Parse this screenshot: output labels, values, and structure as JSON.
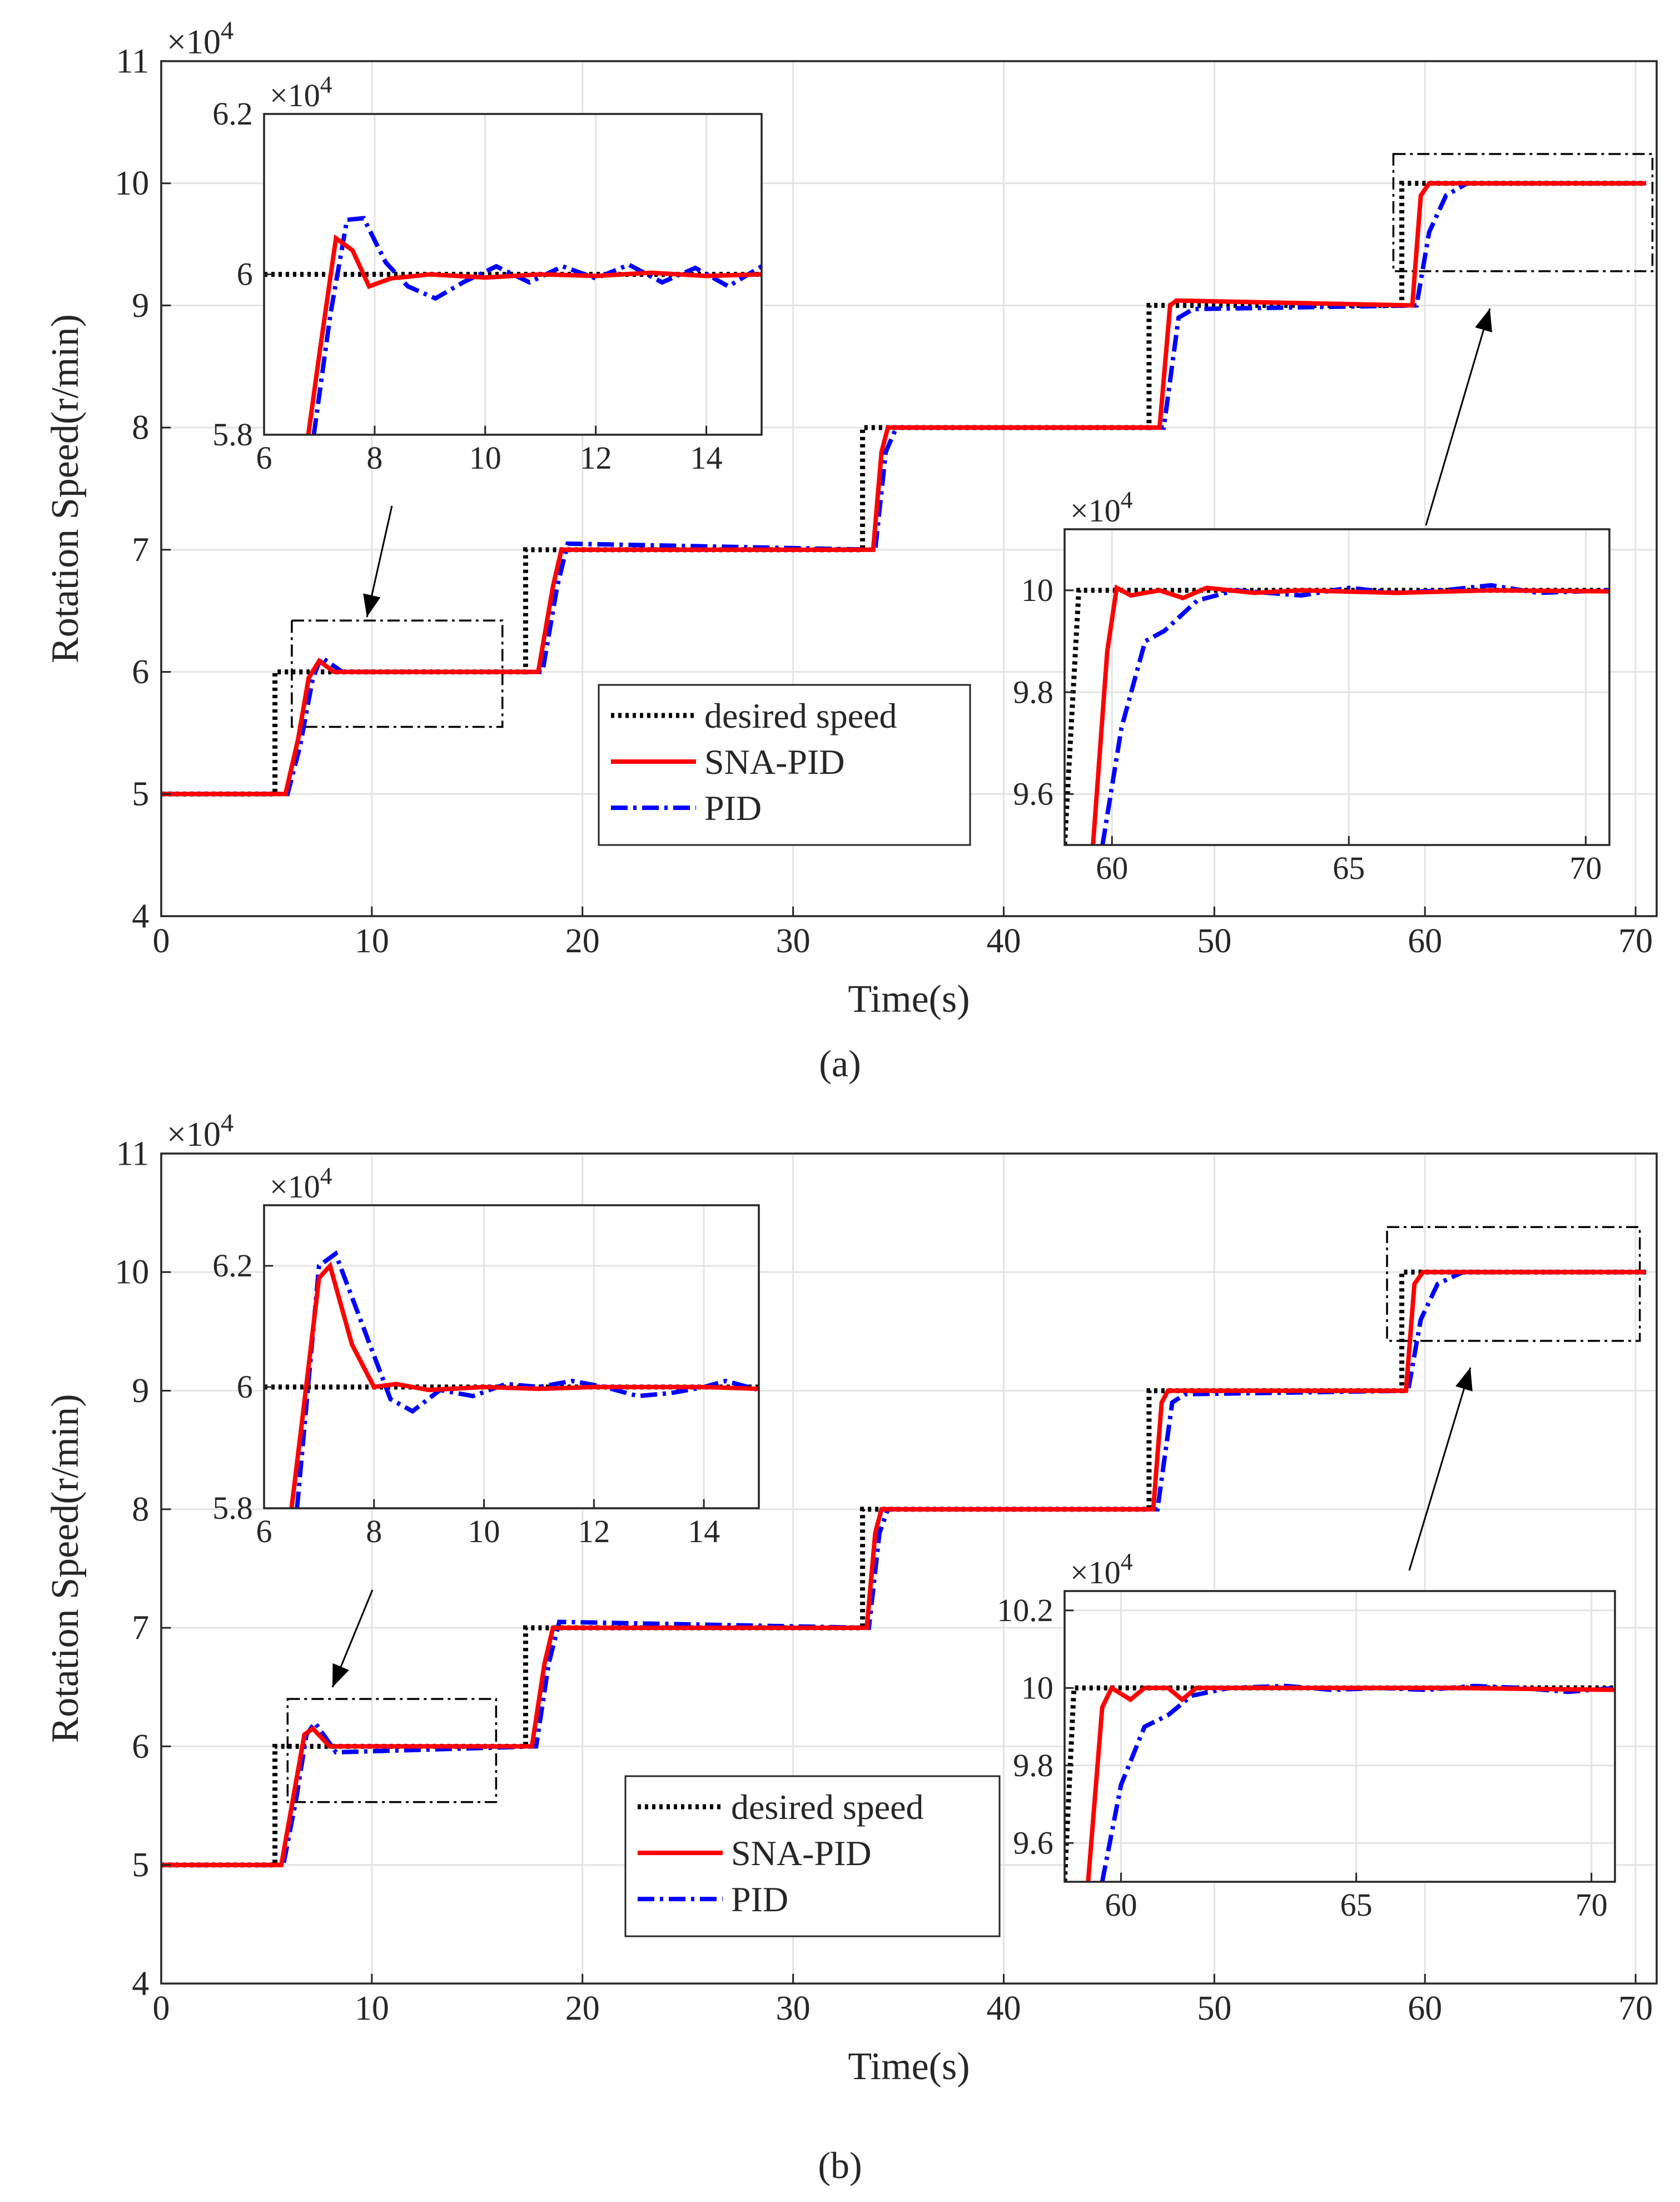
{
  "legend": {
    "desired": "desired speed",
    "sna": "SNA-PID",
    "pid": "PID"
  },
  "colors": {
    "desired": "#000000",
    "sna": "#ff0000",
    "pid": "#0000ff",
    "grid": "#e3e3e3",
    "axis": "#262626",
    "box": "#000000"
  },
  "chart_data": [
    {
      "type": "line",
      "panel_label": "(a)",
      "xlabel": "Time(s)",
      "ylabel": "Rotation Speed(r/min)",
      "y_multiplier": "×10^4",
      "xlim": [
        0,
        71
      ],
      "ylim": [
        4,
        11
      ],
      "xticks": [
        0,
        10,
        20,
        30,
        40,
        50,
        60,
        70
      ],
      "yticks": [
        4,
        5,
        6,
        7,
        8,
        9,
        10,
        11
      ],
      "grid": true,
      "legend_position": "lower-center",
      "desired": [
        [
          0,
          5
        ],
        [
          5.4,
          5
        ],
        [
          5.4,
          6
        ],
        [
          17.3,
          6
        ],
        [
          17.3,
          7
        ],
        [
          33.3,
          7
        ],
        [
          33.3,
          8
        ],
        [
          46.9,
          8
        ],
        [
          46.9,
          9
        ],
        [
          58.9,
          9
        ],
        [
          58.9,
          10
        ],
        [
          70.5,
          10
        ]
      ],
      "sna": [
        [
          0,
          5
        ],
        [
          5.9,
          5
        ],
        [
          6.5,
          5.45
        ],
        [
          7.0,
          5.95
        ],
        [
          7.5,
          6.09
        ],
        [
          8.2,
          6.0
        ],
        [
          17.9,
          6.0
        ],
        [
          18.6,
          6.7
        ],
        [
          19.0,
          7.0
        ],
        [
          33.8,
          7.0
        ],
        [
          34.2,
          7.8
        ],
        [
          34.5,
          8.0
        ],
        [
          47.4,
          8.0
        ],
        [
          47.9,
          9.0
        ],
        [
          48.2,
          9.04
        ],
        [
          59.4,
          9.0
        ],
        [
          59.8,
          9.9
        ],
        [
          60.2,
          10.0
        ],
        [
          70.5,
          10.0
        ]
      ],
      "pid": [
        [
          0,
          5
        ],
        [
          6.0,
          5
        ],
        [
          6.6,
          5.4
        ],
        [
          7.2,
          5.95
        ],
        [
          7.6,
          6.12
        ],
        [
          8.6,
          6.0
        ],
        [
          18.1,
          6.0
        ],
        [
          18.8,
          6.7
        ],
        [
          19.3,
          7.05
        ],
        [
          33.9,
          7.0
        ],
        [
          34.4,
          7.8
        ],
        [
          34.9,
          8.0
        ],
        [
          47.6,
          8.0
        ],
        [
          48.3,
          8.9
        ],
        [
          49.0,
          8.97
        ],
        [
          59.6,
          9.0
        ],
        [
          60.2,
          9.6
        ],
        [
          61.0,
          9.9
        ],
        [
          62.0,
          10.0
        ],
        [
          70.5,
          10.0
        ]
      ],
      "zoom_boxes": [
        [
          6.2,
          16.2,
          5.55,
          6.42
        ],
        [
          58.5,
          70.8,
          9.28,
          10.24
        ]
      ],
      "insets": [
        {
          "multiplier": "×10^4",
          "xlim": [
            6,
            15
          ],
          "ylim": [
            5.8,
            6.2
          ],
          "xticks": [
            6,
            8,
            10,
            12,
            14
          ],
          "yticks": [
            5.8,
            6,
            6.2
          ],
          "desired": [
            [
              6,
              6.0
            ],
            [
              15,
              6.0
            ]
          ],
          "sna": [
            [
              6.8,
              5.8
            ],
            [
              7.0,
              5.9
            ],
            [
              7.3,
              6.045
            ],
            [
              7.6,
              6.03
            ],
            [
              7.9,
              5.985
            ],
            [
              8.3,
              5.995
            ],
            [
              8.6,
              5.997
            ],
            [
              9,
              6.0
            ],
            [
              10,
              5.996
            ],
            [
              11,
              6.0
            ],
            [
              12,
              5.998
            ],
            [
              13,
              6.002
            ],
            [
              14,
              5.998
            ],
            [
              15,
              6.0
            ]
          ],
          "pid": [
            [
              6.9,
              5.8
            ],
            [
              7.2,
              5.95
            ],
            [
              7.5,
              6.068
            ],
            [
              7.8,
              6.07
            ],
            [
              8.2,
              6.015
            ],
            [
              8.6,
              5.985
            ],
            [
              9.1,
              5.97
            ],
            [
              9.6,
              5.99
            ],
            [
              10.2,
              6.01
            ],
            [
              10.8,
              5.99
            ],
            [
              11.4,
              6.01
            ],
            [
              12,
              5.995
            ],
            [
              12.6,
              6.012
            ],
            [
              13.2,
              5.99
            ],
            [
              13.8,
              6.008
            ],
            [
              14.4,
              5.985
            ],
            [
              15,
              6.01
            ]
          ]
        },
        {
          "multiplier": "×10^4",
          "xlim": [
            59,
            70.5
          ],
          "ylim": [
            9.5,
            10.12
          ],
          "xticks": [
            60,
            65,
            70
          ],
          "yticks": [
            9.6,
            9.8,
            10
          ],
          "desired": [
            [
              59,
              9.5
            ],
            [
              59.3,
              10.0
            ],
            [
              70.5,
              10.0
            ]
          ],
          "sna": [
            [
              59.6,
              9.5
            ],
            [
              59.9,
              9.88
            ],
            [
              60.1,
              10.005
            ],
            [
              60.4,
              9.99
            ],
            [
              61,
              10.0
            ],
            [
              61.5,
              9.985
            ],
            [
              62,
              10.005
            ],
            [
              63,
              9.995
            ],
            [
              64,
              10.0
            ],
            [
              66,
              9.995
            ],
            [
              68,
              10.0
            ],
            [
              70.5,
              9.998
            ]
          ],
          "pid": [
            [
              59.8,
              9.5
            ],
            [
              60.2,
              9.73
            ],
            [
              60.7,
              9.9
            ],
            [
              61.1,
              9.92
            ],
            [
              61.8,
              9.98
            ],
            [
              62.6,
              10.0
            ],
            [
              64,
              9.99
            ],
            [
              65,
              10.005
            ],
            [
              66,
              9.995
            ],
            [
              67,
              10.0
            ],
            [
              68,
              10.01
            ],
            [
              69,
              9.995
            ],
            [
              70.5,
              10.0
            ]
          ]
        }
      ]
    },
    {
      "type": "line",
      "panel_label": "(b)",
      "xlabel": "Time(s)",
      "ylabel": "Rotation Speed(r/min)",
      "y_multiplier": "×10^4",
      "xlim": [
        0,
        71
      ],
      "ylim": [
        4,
        11
      ],
      "xticks": [
        0,
        10,
        20,
        30,
        40,
        50,
        60,
        70
      ],
      "yticks": [
        4,
        5,
        6,
        7,
        8,
        9,
        10,
        11
      ],
      "grid": true,
      "legend_position": "lower-center",
      "desired": [
        [
          0,
          5
        ],
        [
          5.4,
          5
        ],
        [
          5.4,
          6
        ],
        [
          17.3,
          6
        ],
        [
          17.3,
          7
        ],
        [
          33.3,
          7
        ],
        [
          33.3,
          8
        ],
        [
          46.9,
          8
        ],
        [
          46.9,
          9
        ],
        [
          58.9,
          9
        ],
        [
          58.9,
          10
        ],
        [
          70.5,
          10
        ]
      ],
      "sna": [
        [
          0,
          5
        ],
        [
          5.7,
          5
        ],
        [
          6.3,
          5.6
        ],
        [
          6.8,
          6.1
        ],
        [
          7.2,
          6.15
        ],
        [
          8.0,
          6.0
        ],
        [
          17.6,
          6.0
        ],
        [
          18.2,
          6.7
        ],
        [
          18.6,
          7.0
        ],
        [
          33.5,
          7.0
        ],
        [
          33.9,
          7.8
        ],
        [
          34.2,
          8.0
        ],
        [
          47.1,
          8.0
        ],
        [
          47.5,
          8.9
        ],
        [
          47.8,
          9.0
        ],
        [
          59.1,
          9.0
        ],
        [
          59.5,
          9.9
        ],
        [
          59.9,
          10.0
        ],
        [
          70.5,
          10.0
        ]
      ],
      "pid": [
        [
          0,
          5
        ],
        [
          5.8,
          5
        ],
        [
          6.4,
          5.55
        ],
        [
          6.9,
          6.1
        ],
        [
          7.3,
          6.2
        ],
        [
          8.3,
          5.95
        ],
        [
          17.8,
          6.0
        ],
        [
          18.4,
          6.7
        ],
        [
          18.9,
          7.05
        ],
        [
          33.6,
          7.0
        ],
        [
          34.1,
          7.8
        ],
        [
          34.5,
          8.0
        ],
        [
          47.3,
          8.0
        ],
        [
          48.0,
          8.9
        ],
        [
          48.6,
          8.97
        ],
        [
          59.2,
          9.0
        ],
        [
          59.8,
          9.6
        ],
        [
          60.6,
          9.9
        ],
        [
          61.8,
          10.0
        ],
        [
          70.5,
          10.0
        ]
      ],
      "zoom_boxes": [
        [
          6.0,
          15.9,
          5.53,
          6.4
        ],
        [
          58.2,
          70.2,
          9.42,
          10.38
        ]
      ],
      "insets": [
        {
          "multiplier": "×10^4",
          "xlim": [
            6,
            15
          ],
          "ylim": [
            5.8,
            6.3
          ],
          "xticks": [
            6,
            8,
            10,
            12,
            14
          ],
          "yticks": [
            5.8,
            6,
            6.2
          ],
          "desired": [
            [
              6,
              6.0
            ],
            [
              15,
              6.0
            ]
          ],
          "sna": [
            [
              6.5,
              5.8
            ],
            [
              6.7,
              5.95
            ],
            [
              7.0,
              6.18
            ],
            [
              7.2,
              6.2
            ],
            [
              7.6,
              6.07
            ],
            [
              8.0,
              6.0
            ],
            [
              8.4,
              6.005
            ],
            [
              9,
              5.995
            ],
            [
              10,
              6.0
            ],
            [
              11,
              5.997
            ],
            [
              12,
              6.0
            ],
            [
              13,
              6.0
            ],
            [
              14,
              6.0
            ],
            [
              15,
              5.997
            ]
          ],
          "pid": [
            [
              6.6,
              5.8
            ],
            [
              6.8,
              6.0
            ],
            [
              7.0,
              6.2
            ],
            [
              7.3,
              6.22
            ],
            [
              7.8,
              6.1
            ],
            [
              8.3,
              5.98
            ],
            [
              8.7,
              5.96
            ],
            [
              9.2,
              5.995
            ],
            [
              9.8,
              5.985
            ],
            [
              10.4,
              6.005
            ],
            [
              11,
              6.0
            ],
            [
              11.6,
              6.01
            ],
            [
              12.2,
              6.0
            ],
            [
              12.8,
              5.985
            ],
            [
              13.4,
              5.99
            ],
            [
              14,
              6.0
            ],
            [
              14.4,
              6.01
            ],
            [
              15,
              5.995
            ]
          ]
        },
        {
          "multiplier": "×10^4",
          "xlim": [
            58.8,
            70.5
          ],
          "ylim": [
            9.5,
            10.25
          ],
          "xticks": [
            60,
            65,
            70
          ],
          "yticks": [
            9.6,
            9.8,
            10,
            10.2
          ],
          "desired": [
            [
              58.8,
              9.5
            ],
            [
              59.0,
              10.0
            ],
            [
              70.5,
              10.0
            ]
          ],
          "sna": [
            [
              59.3,
              9.5
            ],
            [
              59.6,
              9.95
            ],
            [
              59.8,
              10.0
            ],
            [
              60.2,
              9.97
            ],
            [
              60.5,
              10.0
            ],
            [
              61,
              10.0
            ],
            [
              61.3,
              9.97
            ],
            [
              61.6,
              10.0
            ],
            [
              63,
              10.0
            ],
            [
              65,
              10.0
            ],
            [
              67,
              10.0
            ],
            [
              70.5,
              9.995
            ]
          ],
          "pid": [
            [
              59.6,
              9.5
            ],
            [
              60,
              9.75
            ],
            [
              60.5,
              9.9
            ],
            [
              61,
              9.93
            ],
            [
              61.5,
              9.98
            ],
            [
              62.3,
              10.0
            ],
            [
              63.5,
              10.005
            ],
            [
              64.5,
              9.995
            ],
            [
              65.5,
              10.0
            ],
            [
              66.5,
              9.995
            ],
            [
              67.5,
              10.005
            ],
            [
              68.5,
              10.0
            ],
            [
              69.5,
              9.99
            ],
            [
              70.5,
              10.0
            ]
          ]
        }
      ]
    }
  ]
}
